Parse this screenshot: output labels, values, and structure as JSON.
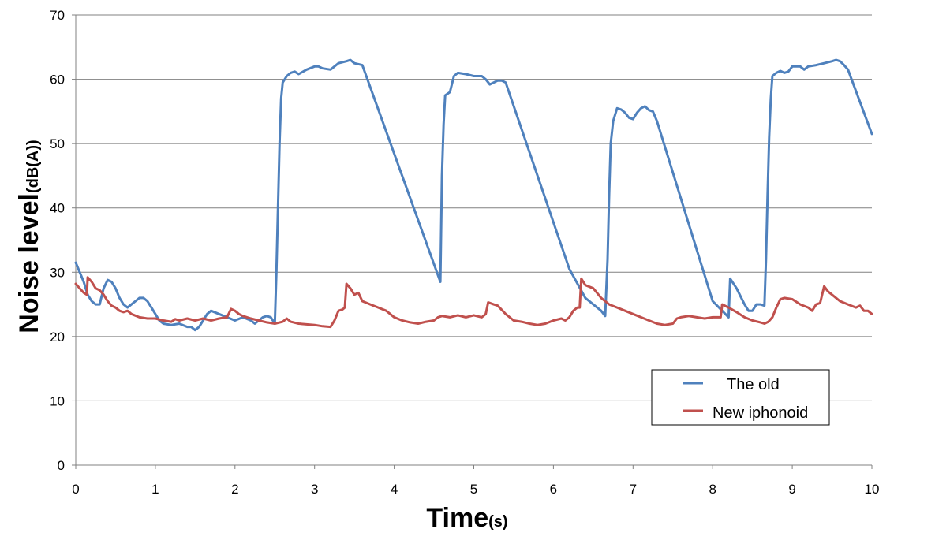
{
  "chart_data": {
    "type": "line",
    "xlabel_main": "Time",
    "xlabel_unit": "(s)",
    "ylabel_main": "Noise level",
    "ylabel_unit": "(dB(A))",
    "xlim": [
      0,
      10
    ],
    "ylim": [
      0,
      70
    ],
    "x_ticks": [
      0,
      1,
      2,
      3,
      4,
      5,
      6,
      7,
      8,
      9,
      10
    ],
    "y_ticks": [
      0,
      10,
      20,
      30,
      40,
      50,
      60,
      70
    ],
    "grid": "horizontal",
    "legend_position": "bottom-right",
    "series": [
      {
        "name": "The old",
        "color": "#4f81bd",
        "points": [
          [
            0.0,
            31.5
          ],
          [
            0.1,
            28.5
          ],
          [
            0.15,
            26.5
          ],
          [
            0.2,
            25.5
          ],
          [
            0.25,
            25.0
          ],
          [
            0.3,
            25.0
          ],
          [
            0.35,
            27.5
          ],
          [
            0.4,
            28.8
          ],
          [
            0.45,
            28.5
          ],
          [
            0.5,
            27.5
          ],
          [
            0.55,
            26.0
          ],
          [
            0.6,
            25.0
          ],
          [
            0.65,
            24.5
          ],
          [
            0.7,
            25.0
          ],
          [
            0.75,
            25.5
          ],
          [
            0.8,
            26.0
          ],
          [
            0.85,
            26.0
          ],
          [
            0.9,
            25.5
          ],
          [
            0.95,
            24.5
          ],
          [
            1.0,
            23.5
          ],
          [
            1.05,
            22.5
          ],
          [
            1.1,
            22.0
          ],
          [
            1.2,
            21.8
          ],
          [
            1.3,
            22.0
          ],
          [
            1.4,
            21.5
          ],
          [
            1.45,
            21.5
          ],
          [
            1.5,
            21.0
          ],
          [
            1.55,
            21.5
          ],
          [
            1.6,
            22.5
          ],
          [
            1.65,
            23.5
          ],
          [
            1.7,
            24.0
          ],
          [
            1.8,
            23.5
          ],
          [
            1.9,
            23.0
          ],
          [
            2.0,
            22.5
          ],
          [
            2.1,
            23.0
          ],
          [
            2.2,
            22.5
          ],
          [
            2.25,
            22.0
          ],
          [
            2.3,
            22.5
          ],
          [
            2.35,
            23.0
          ],
          [
            2.4,
            23.2
          ],
          [
            2.45,
            23.0
          ],
          [
            2.5,
            22.0
          ],
          [
            2.52,
            30.0
          ],
          [
            2.54,
            40.0
          ],
          [
            2.56,
            50.0
          ],
          [
            2.58,
            57.0
          ],
          [
            2.6,
            59.5
          ],
          [
            2.65,
            60.5
          ],
          [
            2.7,
            61.0
          ],
          [
            2.75,
            61.2
          ],
          [
            2.8,
            60.8
          ],
          [
            2.9,
            61.5
          ],
          [
            3.0,
            62.0
          ],
          [
            3.05,
            62.0
          ],
          [
            3.1,
            61.7
          ],
          [
            3.2,
            61.5
          ],
          [
            3.3,
            62.5
          ],
          [
            3.4,
            62.8
          ],
          [
            3.45,
            63.0
          ],
          [
            3.5,
            62.5
          ],
          [
            3.6,
            62.2
          ],
          [
            4.58,
            28.5
          ],
          [
            4.6,
            45.0
          ],
          [
            4.62,
            53.0
          ],
          [
            4.64,
            57.5
          ],
          [
            4.7,
            58.0
          ],
          [
            4.75,
            60.5
          ],
          [
            4.8,
            61.0
          ],
          [
            4.9,
            60.8
          ],
          [
            5.0,
            60.5
          ],
          [
            5.1,
            60.5
          ],
          [
            5.15,
            60.0
          ],
          [
            5.2,
            59.2
          ],
          [
            5.25,
            59.5
          ],
          [
            5.3,
            59.8
          ],
          [
            5.35,
            59.8
          ],
          [
            5.4,
            59.5
          ],
          [
            6.2,
            30.5
          ],
          [
            6.4,
            26.0
          ],
          [
            6.6,
            24.0
          ],
          [
            6.65,
            23.2
          ],
          [
            6.68,
            32.0
          ],
          [
            6.7,
            42.0
          ],
          [
            6.72,
            50.0
          ],
          [
            6.75,
            53.5
          ],
          [
            6.8,
            55.5
          ],
          [
            6.85,
            55.3
          ],
          [
            6.9,
            54.8
          ],
          [
            6.95,
            54.0
          ],
          [
            7.0,
            53.8
          ],
          [
            7.05,
            54.8
          ],
          [
            7.1,
            55.5
          ],
          [
            7.15,
            55.8
          ],
          [
            7.2,
            55.2
          ],
          [
            7.25,
            55.0
          ],
          [
            7.3,
            53.5
          ],
          [
            8.0,
            25.5
          ],
          [
            8.2,
            23.0
          ],
          [
            8.22,
            29.0
          ],
          [
            8.3,
            27.5
          ],
          [
            8.4,
            25.0
          ],
          [
            8.45,
            24.0
          ],
          [
            8.5,
            24.0
          ],
          [
            8.55,
            25.0
          ],
          [
            8.6,
            25.0
          ],
          [
            8.65,
            24.8
          ],
          [
            8.67,
            32.0
          ],
          [
            8.69,
            42.0
          ],
          [
            8.71,
            51.0
          ],
          [
            8.73,
            57.0
          ],
          [
            8.75,
            60.5
          ],
          [
            8.8,
            61.0
          ],
          [
            8.85,
            61.3
          ],
          [
            8.9,
            61.0
          ],
          [
            8.95,
            61.2
          ],
          [
            9.0,
            62.0
          ],
          [
            9.1,
            62.0
          ],
          [
            9.15,
            61.5
          ],
          [
            9.2,
            62.0
          ],
          [
            9.3,
            62.2
          ],
          [
            9.4,
            62.5
          ],
          [
            9.5,
            62.8
          ],
          [
            9.55,
            63.0
          ],
          [
            9.6,
            62.8
          ],
          [
            9.65,
            62.2
          ],
          [
            9.7,
            61.5
          ],
          [
            10.0,
            51.5
          ]
        ]
      },
      {
        "name": "New iphonoid",
        "color": "#c0504d",
        "points": [
          [
            0.0,
            28.2
          ],
          [
            0.05,
            27.5
          ],
          [
            0.1,
            26.8
          ],
          [
            0.14,
            26.5
          ],
          [
            0.15,
            29.2
          ],
          [
            0.2,
            28.5
          ],
          [
            0.25,
            27.5
          ],
          [
            0.3,
            27.2
          ],
          [
            0.35,
            26.5
          ],
          [
            0.4,
            25.5
          ],
          [
            0.45,
            24.8
          ],
          [
            0.5,
            24.5
          ],
          [
            0.55,
            24.0
          ],
          [
            0.6,
            23.8
          ],
          [
            0.65,
            24.0
          ],
          [
            0.7,
            23.5
          ],
          [
            0.8,
            23.0
          ],
          [
            0.9,
            22.8
          ],
          [
            1.0,
            22.8
          ],
          [
            1.1,
            22.5
          ],
          [
            1.2,
            22.3
          ],
          [
            1.25,
            22.7
          ],
          [
            1.3,
            22.5
          ],
          [
            1.4,
            22.8
          ],
          [
            1.5,
            22.5
          ],
          [
            1.6,
            22.8
          ],
          [
            1.7,
            22.5
          ],
          [
            1.8,
            22.8
          ],
          [
            1.9,
            23.0
          ],
          [
            1.95,
            24.3
          ],
          [
            2.0,
            24.0
          ],
          [
            2.05,
            23.5
          ],
          [
            2.1,
            23.2
          ],
          [
            2.2,
            22.8
          ],
          [
            2.3,
            22.5
          ],
          [
            2.4,
            22.2
          ],
          [
            2.5,
            22.0
          ],
          [
            2.6,
            22.3
          ],
          [
            2.65,
            22.8
          ],
          [
            2.7,
            22.3
          ],
          [
            2.8,
            22.0
          ],
          [
            3.0,
            21.8
          ],
          [
            3.1,
            21.6
          ],
          [
            3.2,
            21.5
          ],
          [
            3.25,
            22.5
          ],
          [
            3.3,
            24.0
          ],
          [
            3.35,
            24.2
          ],
          [
            3.38,
            24.5
          ],
          [
            3.4,
            28.2
          ],
          [
            3.45,
            27.5
          ],
          [
            3.5,
            26.5
          ],
          [
            3.55,
            26.8
          ],
          [
            3.6,
            25.5
          ],
          [
            3.7,
            25.0
          ],
          [
            3.8,
            24.5
          ],
          [
            3.9,
            24.0
          ],
          [
            4.0,
            23.0
          ],
          [
            4.1,
            22.5
          ],
          [
            4.2,
            22.2
          ],
          [
            4.3,
            22.0
          ],
          [
            4.4,
            22.3
          ],
          [
            4.5,
            22.5
          ],
          [
            4.55,
            23.0
          ],
          [
            4.6,
            23.2
          ],
          [
            4.7,
            23.0
          ],
          [
            4.8,
            23.3
          ],
          [
            4.9,
            23.0
          ],
          [
            5.0,
            23.3
          ],
          [
            5.1,
            23.0
          ],
          [
            5.15,
            23.5
          ],
          [
            5.18,
            25.3
          ],
          [
            5.25,
            25.0
          ],
          [
            5.3,
            24.8
          ],
          [
            5.4,
            23.5
          ],
          [
            5.5,
            22.5
          ],
          [
            5.6,
            22.3
          ],
          [
            5.7,
            22.0
          ],
          [
            5.8,
            21.8
          ],
          [
            5.9,
            22.0
          ],
          [
            6.0,
            22.5
          ],
          [
            6.1,
            22.8
          ],
          [
            6.15,
            22.5
          ],
          [
            6.2,
            23.0
          ],
          [
            6.25,
            24.0
          ],
          [
            6.3,
            24.5
          ],
          [
            6.33,
            24.5
          ],
          [
            6.35,
            29.0
          ],
          [
            6.4,
            28.0
          ],
          [
            6.5,
            27.5
          ],
          [
            6.6,
            26.0
          ],
          [
            6.7,
            25.0
          ],
          [
            6.8,
            24.5
          ],
          [
            6.9,
            24.0
          ],
          [
            7.0,
            23.5
          ],
          [
            7.1,
            23.0
          ],
          [
            7.2,
            22.5
          ],
          [
            7.3,
            22.0
          ],
          [
            7.4,
            21.8
          ],
          [
            7.5,
            22.0
          ],
          [
            7.55,
            22.8
          ],
          [
            7.6,
            23.0
          ],
          [
            7.7,
            23.2
          ],
          [
            7.8,
            23.0
          ],
          [
            7.9,
            22.8
          ],
          [
            8.0,
            23.0
          ],
          [
            8.05,
            23.0
          ],
          [
            8.1,
            23.0
          ],
          [
            8.12,
            25.0
          ],
          [
            8.2,
            24.5
          ],
          [
            8.3,
            23.8
          ],
          [
            8.4,
            23.0
          ],
          [
            8.5,
            22.5
          ],
          [
            8.6,
            22.2
          ],
          [
            8.65,
            22.0
          ],
          [
            8.7,
            22.3
          ],
          [
            8.75,
            23.0
          ],
          [
            8.8,
            24.5
          ],
          [
            8.85,
            25.8
          ],
          [
            8.9,
            26.0
          ],
          [
            9.0,
            25.8
          ],
          [
            9.1,
            25.0
          ],
          [
            9.2,
            24.5
          ],
          [
            9.25,
            24.0
          ],
          [
            9.3,
            25.0
          ],
          [
            9.35,
            25.2
          ],
          [
            9.4,
            27.8
          ],
          [
            9.45,
            27.0
          ],
          [
            9.5,
            26.5
          ],
          [
            9.6,
            25.5
          ],
          [
            9.7,
            25.0
          ],
          [
            9.8,
            24.5
          ],
          [
            9.85,
            24.8
          ],
          [
            9.9,
            24.0
          ],
          [
            9.95,
            24.0
          ],
          [
            10.0,
            23.5
          ]
        ]
      }
    ]
  }
}
